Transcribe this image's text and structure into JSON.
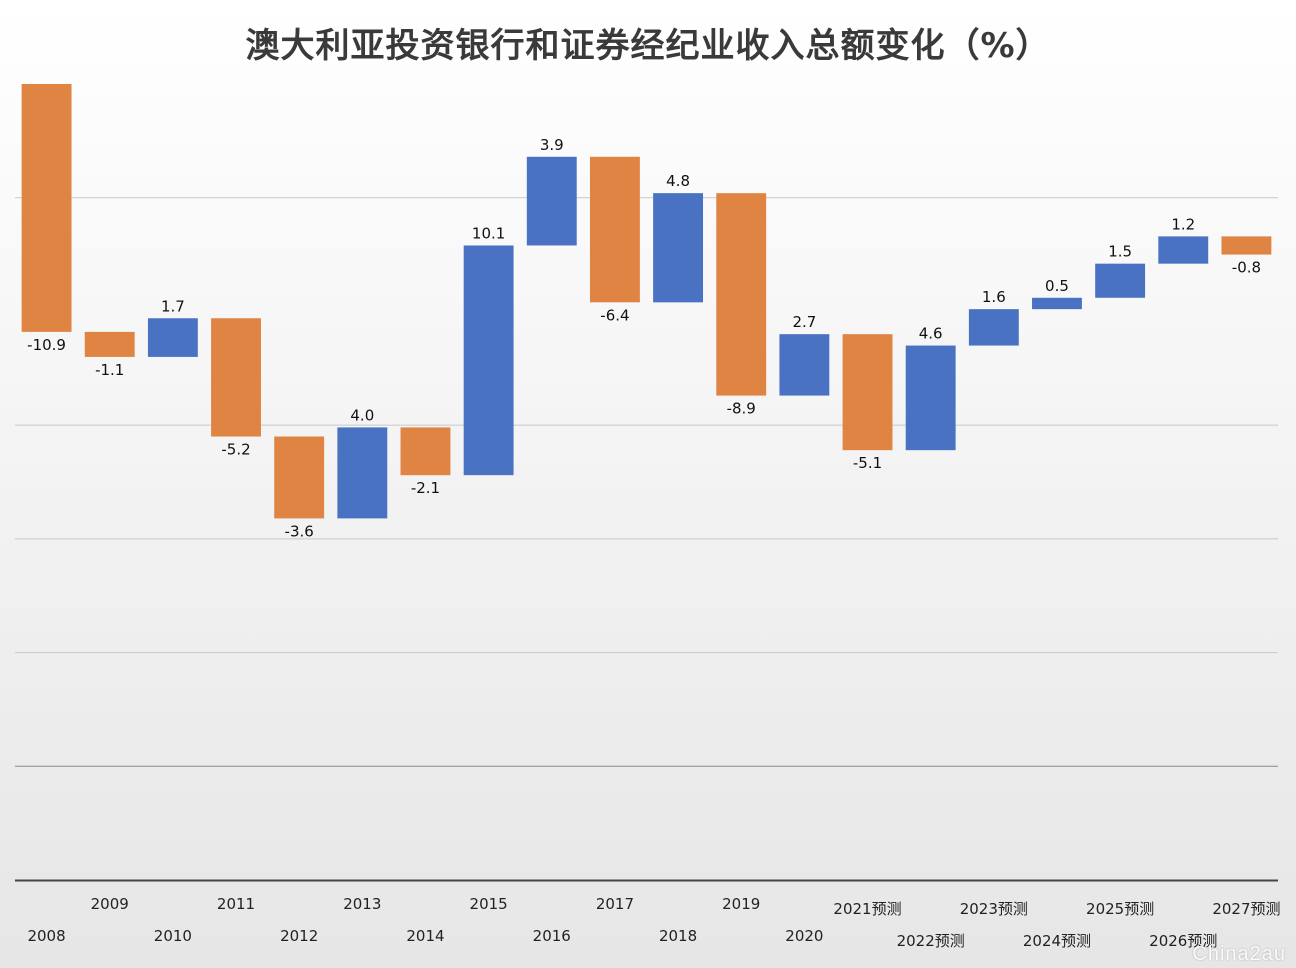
{
  "chart_data": {
    "type": "bar",
    "subtype": "waterfall",
    "title": "澳大利亚投资银行和证券经纪业收入总额变化（%）",
    "categories": [
      "2008",
      "2009",
      "2010",
      "2011",
      "2012",
      "2013",
      "2014",
      "2015",
      "2016",
      "2017",
      "2018",
      "2019",
      "2020",
      "2021预测",
      "2022预测",
      "2023预测",
      "2024预测",
      "2025预测",
      "2026预测",
      "2027预测"
    ],
    "values": [
      -10.9,
      -1.1,
      1.7,
      -5.2,
      -3.6,
      4.0,
      -2.1,
      10.1,
      3.9,
      -6.4,
      4.8,
      -8.9,
      2.7,
      -5.1,
      4.6,
      1.6,
      0.5,
      1.5,
      1.2,
      -0.8
    ],
    "value_labels": [
      "-10.9",
      "-1.1",
      "1.7",
      "-5.2",
      "-3.6",
      "4.0",
      "-2.1",
      "10.1",
      "3.9",
      "-6.4",
      "4.8",
      "-8.9",
      "2.7",
      "-5.1",
      "4.6",
      "1.6",
      "0.5",
      "1.5",
      "1.2",
      "-0.8"
    ],
    "xlabel": "",
    "ylabel": "",
    "ylim": [
      -25,
      10
    ],
    "gridlines": [
      -20,
      -15,
      -10,
      -5,
      5
    ],
    "grid": true,
    "legend": "none",
    "colors": {
      "increase": "#4a72c2",
      "decrease": "#e08444"
    }
  },
  "watermark": "China2au"
}
